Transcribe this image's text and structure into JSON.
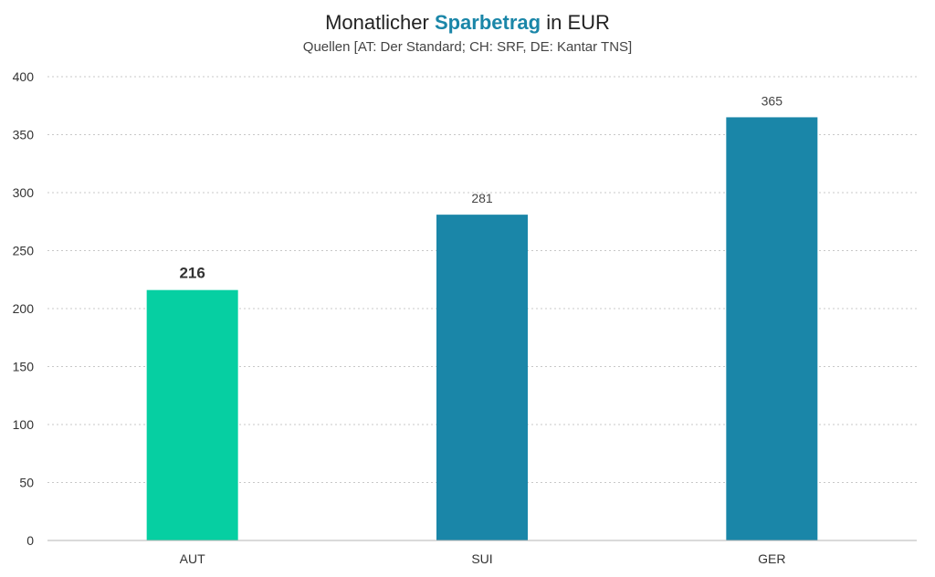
{
  "title": {
    "prefix": "Monatlicher ",
    "highlight": "Sparbetrag",
    "suffix": " in EUR"
  },
  "subtitle": "Quellen [AT: Der Standard; CH: SRF, DE: Kantar TNS]",
  "colors": {
    "highlight_bar": "#06cfa2",
    "bar": "#1a86a8",
    "title_accent": "#1a86a8",
    "grid": "#c8c8c8"
  },
  "chart_data": {
    "type": "bar",
    "categories": [
      "AUT",
      "SUI",
      "GER"
    ],
    "values": [
      216,
      281,
      365
    ],
    "highlighted_category": "AUT",
    "ylim": [
      0,
      400
    ],
    "yticks": [
      0,
      50,
      100,
      150,
      200,
      250,
      300,
      350,
      400
    ],
    "grid": true,
    "xlabel": "",
    "ylabel": ""
  }
}
